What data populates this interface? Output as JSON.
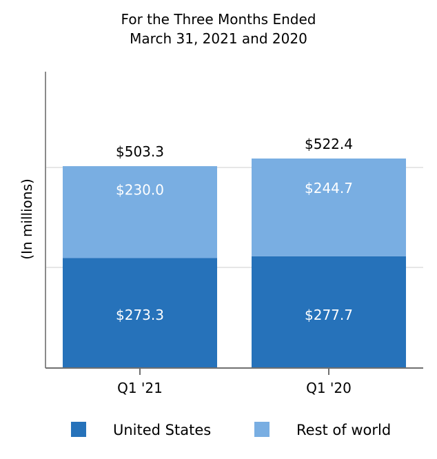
{
  "chart_data": {
    "type": "bar",
    "stacked": true,
    "title_lines": [
      "For the Three Months Ended",
      "March 31, 2021 and 2020"
    ],
    "ylabel": "(In millions)",
    "xlabel": "",
    "categories": [
      "Q1 '21",
      "Q1 '20"
    ],
    "series": [
      {
        "name": "United States",
        "values": [
          273.3,
          277.7
        ],
        "labels": [
          "$273.3",
          "$277.7"
        ],
        "color": "#2672BA"
      },
      {
        "name": "Rest of world",
        "values": [
          230.0,
          244.7
        ],
        "labels": [
          "$230.0",
          "$244.7"
        ],
        "color": "#79AEE2"
      }
    ],
    "totals": [
      503.3,
      522.4
    ],
    "total_labels": [
      "$503.3",
      "$522.4"
    ],
    "ylim": [
      0,
      650
    ],
    "gridlines": [
      0,
      250,
      500
    ],
    "ytick_labels_shown": false,
    "grid": true,
    "legend_position": "bottom"
  }
}
